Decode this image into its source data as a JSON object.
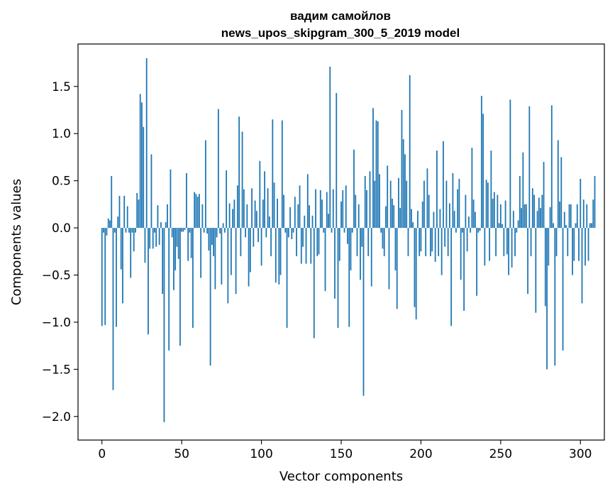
{
  "chart_data": {
    "type": "bar",
    "title": "вадим самойлов",
    "subtitle": "news_upos_skipgram_300_5_2019 model",
    "xlabel": "Vector components",
    "ylabel": "Components values",
    "xlim": [
      -15,
      315
    ],
    "ylim": [
      -2.25,
      1.95
    ],
    "xticks": [
      0,
      50,
      100,
      150,
      200,
      250,
      300
    ],
    "xtick_labels": [
      "0",
      "50",
      "100",
      "150",
      "200",
      "250",
      "300"
    ],
    "yticks": [
      -2.0,
      -1.5,
      -1.0,
      -0.5,
      0.0,
      0.5,
      1.0,
      1.5
    ],
    "ytick_labels": [
      "−2.0",
      "−1.5",
      "−1.0",
      "−0.5",
      "0.0",
      "0.5",
      "1.0",
      "1.5"
    ],
    "bar_color": "#1f77b4",
    "grid": false,
    "series": [
      {
        "name": "components",
        "x_start": 0,
        "values": [
          -1.04,
          -0.05,
          -1.03,
          -0.08,
          0.1,
          0.08,
          0.55,
          -1.72,
          -0.05,
          -1.05,
          0.12,
          0.34,
          -0.44,
          -0.8,
          0.34,
          -0.05,
          0.23,
          -0.05,
          -0.53,
          -0.05,
          -0.25,
          -0.05,
          0.37,
          0.3,
          1.42,
          1.33,
          1.07,
          -0.37,
          1.8,
          -1.13,
          -0.22,
          0.78,
          -0.22,
          -0.05,
          -0.2,
          0.24,
          -0.18,
          0.06,
          -0.7,
          -2.06,
          0.06,
          0.25,
          -1.3,
          0.62,
          -0.1,
          -0.66,
          -0.45,
          -0.2,
          -0.33,
          -1.25,
          -0.04,
          -0.04,
          -0.02,
          0.58,
          -0.35,
          -0.05,
          -0.32,
          -1.06,
          0.38,
          0.36,
          0.33,
          0.36,
          -0.53,
          0.25,
          -0.05,
          0.93,
          -0.06,
          -0.24,
          -1.46,
          -0.18,
          -0.3,
          -0.65,
          -0.1,
          1.26,
          -0.06,
          -0.6,
          0.05,
          -0.05,
          0.61,
          -0.8,
          0.26,
          -0.5,
          0.2,
          0.3,
          -0.7,
          0.45,
          1.18,
          -0.3,
          1.02,
          0.41,
          -0.1,
          0.25,
          -0.62,
          -0.47,
          0.42,
          -0.2,
          0.29,
          0.18,
          -0.15,
          0.71,
          -0.4,
          0.3,
          0.6,
          -0.1,
          0.42,
          0.12,
          -0.3,
          1.15,
          0.48,
          -0.58,
          0.31,
          -0.6,
          -0.5,
          1.14,
          0.35,
          -0.05,
          -1.06,
          -0.1,
          0.22,
          -0.12,
          -0.05,
          0.33,
          -0.3,
          0.25,
          0.45,
          -0.38,
          -0.2,
          0.13,
          -0.38,
          0.57,
          0.24,
          -0.38,
          0.13,
          -1.17,
          0.41,
          -0.3,
          -0.28,
          0.4,
          0.3,
          -0.05,
          -0.67,
          0.38,
          0.15,
          1.71,
          -0.05,
          0.41,
          -0.75,
          1.43,
          -1.06,
          -0.35,
          0.28,
          0.4,
          -0.05,
          0.45,
          -0.17,
          -1.05,
          -0.45,
          -0.05,
          0.83,
          0.35,
          -0.3,
          0.25,
          -0.55,
          -0.2,
          -1.78,
          0.55,
          0.4,
          -0.3,
          0.6,
          -0.62,
          1.27,
          0.5,
          1.14,
          1.13,
          0.57,
          -0.05,
          -0.22,
          -0.3,
          0.23,
          0.66,
          -0.65,
          0.5,
          0.31,
          0.24,
          -0.45,
          -0.86,
          0.53,
          0.21,
          1.25,
          0.94,
          0.78,
          0.5,
          -0.3,
          1.62,
          0.2,
          0.06,
          -0.84,
          -0.97,
          0.18,
          -0.3,
          -0.25,
          0.28,
          0.5,
          -0.3,
          0.63,
          0.35,
          -0.3,
          -0.25,
          0.17,
          -0.36,
          0.82,
          -0.3,
          0.2,
          -0.5,
          0.92,
          -0.2,
          0.5,
          -0.3,
          0.26,
          -1.04,
          0.58,
          0.18,
          -0.05,
          0.41,
          0.52,
          -0.55,
          -0.05,
          -0.88,
          0.35,
          -0.25,
          0.12,
          -0.05,
          0.85,
          0.3,
          0.17,
          -0.72,
          -0.05,
          -0.03,
          1.4,
          1.21,
          -0.4,
          0.51,
          0.48,
          -0.35,
          0.82,
          0.31,
          0.38,
          -0.3,
          0.35,
          0.05,
          0.25,
          0.04,
          -0.3,
          0.29,
          -0.28,
          -0.5,
          1.36,
          -0.42,
          0.18,
          -0.3,
          -0.05,
          0.08,
          0.55,
          0.21,
          0.8,
          0.25,
          0.25,
          -0.7,
          1.29,
          -0.3,
          0.42,
          0.35,
          -0.9,
          0.18,
          0.32,
          0.21,
          0.35,
          0.7,
          -0.83,
          -1.5,
          -0.4,
          0.22,
          1.3,
          0.05,
          -1.46,
          -0.3,
          0.93,
          0.28,
          0.75,
          -1.3,
          0.17,
          0.03,
          -0.3,
          0.25,
          0.25,
          -0.5,
          -0.35,
          0.05,
          0.25,
          -0.35,
          0.52,
          -0.8,
          0.3,
          -0.4,
          0.25,
          -0.35,
          0.05,
          0.05,
          0.3,
          0.55
        ]
      }
    ]
  }
}
